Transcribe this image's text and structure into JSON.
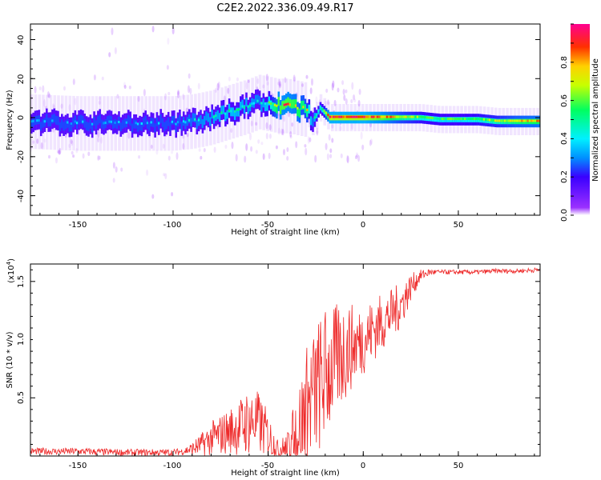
{
  "title": "C2E2.2022.336.09.49.R17",
  "chart_data": [
    {
      "type": "heatmap",
      "name": "spectrogram",
      "xlabel": "Height of straight line (km)",
      "ylabel": "Frequency (Hz)",
      "xlim": [
        -175,
        93
      ],
      "ylim": [
        -50,
        48
      ],
      "xticks": [
        -150,
        -100,
        -50,
        0,
        50
      ],
      "yticks": [
        -40,
        -20,
        0,
        20,
        40
      ],
      "ridge": {
        "x": [
          -175,
          -150,
          -125,
          -100,
          -90,
          -80,
          -70,
          -60,
          -55,
          -50,
          -45,
          -40,
          -35,
          -30,
          -27,
          -25,
          -23,
          -21,
          -18,
          -10,
          0,
          10,
          20,
          30,
          40,
          50,
          60,
          70,
          80,
          93
        ],
        "freq": [
          -2,
          -3,
          -3,
          -3,
          -2,
          0,
          3,
          6,
          8,
          7,
          6,
          6,
          5,
          4,
          -2,
          1,
          5,
          3,
          0,
          0,
          0,
          0,
          0,
          0,
          -1,
          -1,
          -1,
          -2,
          -2,
          -2
        ],
        "amplitude": [
          0.3,
          0.35,
          0.35,
          0.35,
          0.4,
          0.45,
          0.5,
          0.45,
          0.4,
          0.55,
          0.85,
          0.85,
          0.8,
          0.7,
          0.4,
          0.5,
          0.5,
          0.6,
          0.95,
          0.95,
          0.95,
          0.85,
          0.7,
          0.6,
          0.55,
          0.55,
          0.6,
          0.65,
          0.75,
          0.8
        ]
      },
      "colorbar": {
        "label": "Normalized spectral amplitude",
        "ticks": [
          0.0,
          0.2,
          0.4,
          0.6,
          0.8
        ],
        "tick_labels": [
          "0.0",
          "0.2",
          "0.4",
          "0.6",
          "0.8"
        ],
        "range": [
          0,
          1
        ]
      }
    },
    {
      "type": "line",
      "name": "snr",
      "xlabel": "Height of straight line (km)",
      "ylabel": "SNR (10 * v/v)",
      "exponent_label": "(x10",
      "exponent_power": "4",
      "exponent_close": ")",
      "xlim": [
        -175,
        93
      ],
      "ylim": [
        0,
        1.65
      ],
      "xticks": [
        -150,
        -100,
        -50,
        0,
        50
      ],
      "yticks": [
        0.5,
        1.0,
        1.5
      ],
      "ytick_labels": [
        "0.5",
        "1.0",
        "1.5"
      ],
      "color": "#ee2a2a",
      "series": {
        "x": [
          -175,
          -150,
          -125,
          -100,
          -95,
          -90,
          -85,
          -80,
          -75,
          -70,
          -65,
          -60,
          -55,
          -50,
          -45,
          -40,
          -35,
          -30,
          -25,
          -20,
          -15,
          -10,
          -5,
          0,
          5,
          10,
          15,
          20,
          25,
          30,
          35,
          40,
          50,
          60,
          70,
          80,
          93
        ],
        "base": [
          0.04,
          0.04,
          0.03,
          0.03,
          0.04,
          0.06,
          0.1,
          0.15,
          0.18,
          0.22,
          0.25,
          0.3,
          0.28,
          0.18,
          0.06,
          0.05,
          0.2,
          0.4,
          0.55,
          0.7,
          0.8,
          0.9,
          0.95,
          1.0,
          1.08,
          1.15,
          1.22,
          1.3,
          1.45,
          1.55,
          1.58,
          1.58,
          1.58,
          1.58,
          1.59,
          1.59,
          1.6
        ],
        "noise": [
          0.03,
          0.03,
          0.03,
          0.03,
          0.03,
          0.06,
          0.1,
          0.15,
          0.18,
          0.2,
          0.25,
          0.3,
          0.28,
          0.2,
          0.08,
          0.15,
          0.35,
          0.55,
          0.6,
          0.6,
          0.5,
          0.45,
          0.35,
          0.3,
          0.28,
          0.25,
          0.22,
          0.2,
          0.12,
          0.05,
          0.03,
          0.02,
          0.02,
          0.02,
          0.02,
          0.02,
          0.02
        ]
      }
    }
  ]
}
